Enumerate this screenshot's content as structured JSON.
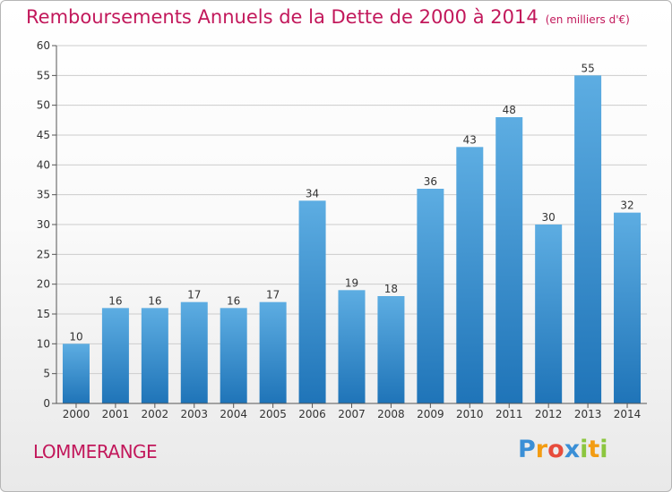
{
  "title": "Remboursements Annuels de la Dette de 2000 à 2014",
  "subtitle": "(en milliers d'€)",
  "commune": "LOMMERANGE",
  "logo": {
    "letters": [
      "P",
      "r",
      "o",
      "x",
      "i",
      "t",
      "i"
    ],
    "colors": [
      "#3a8fd6",
      "#f39c12",
      "#e74c3c",
      "#3a8fd6",
      "#8cc63f",
      "#f39c12",
      "#8cc63f"
    ]
  },
  "colors": {
    "bar_top": "#5dade2",
    "bar_bottom": "#1f74b8",
    "title": "#c2185b",
    "grid": "#cccccc"
  },
  "chart_data": {
    "type": "bar",
    "title": "Remboursements Annuels de la Dette de 2000 à 2014",
    "categories": [
      "2000",
      "2001",
      "2002",
      "2003",
      "2004",
      "2005",
      "2006",
      "2007",
      "2008",
      "2009",
      "2010",
      "2011",
      "2012",
      "2013",
      "2014"
    ],
    "values": [
      10,
      16,
      16,
      17,
      16,
      17,
      34,
      19,
      18,
      36,
      43,
      48,
      30,
      55,
      32
    ],
    "ylim": [
      0,
      60
    ],
    "yticks": [
      0,
      5,
      10,
      15,
      20,
      25,
      30,
      35,
      40,
      45,
      50,
      55,
      60
    ],
    "grid": true,
    "data_labels": true
  }
}
